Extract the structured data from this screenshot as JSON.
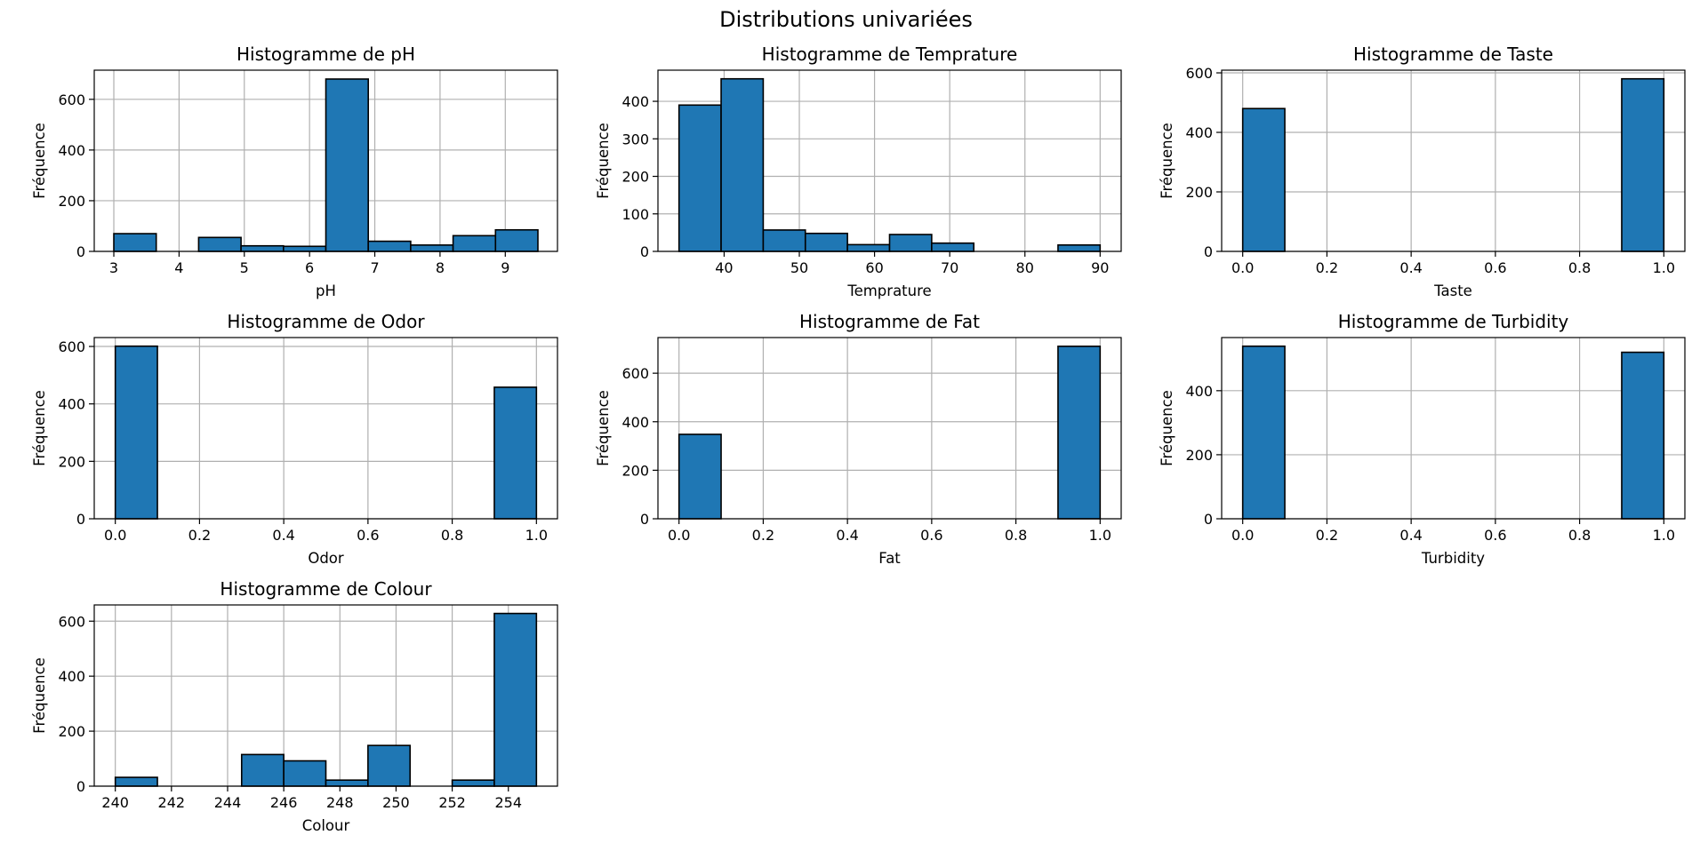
{
  "figure": {
    "title": "Distributions univariées"
  },
  "chart_data": [
    {
      "type": "bar",
      "title": "Histogramme de pH",
      "xlabel": "pH",
      "ylabel": "Fréquence",
      "bin_edges": [
        3.0,
        3.65,
        4.3,
        4.95,
        5.6,
        6.25,
        6.9,
        7.55,
        8.2,
        8.85,
        9.5
      ],
      "values": [
        70,
        0,
        55,
        22,
        20,
        680,
        40,
        25,
        62,
        85
      ],
      "xlim": [
        2.7,
        9.8
      ],
      "ylim": [
        0,
        715
      ],
      "xticks": [
        3,
        4,
        5,
        6,
        7,
        8,
        9
      ],
      "xtick_labels": [
        "3",
        "4",
        "5",
        "6",
        "7",
        "8",
        "9"
      ],
      "yticks": [
        0,
        200,
        400,
        600
      ],
      "ytick_labels": [
        "0",
        "200",
        "400",
        "600"
      ],
      "grid": true
    },
    {
      "type": "bar",
      "title": "Histogramme de Temprature",
      "xlabel": "Temprature",
      "ylabel": "Fréquence",
      "bin_edges": [
        34,
        39.6,
        45.2,
        50.8,
        56.4,
        62.0,
        67.6,
        73.2,
        78.8,
        84.4,
        90
      ],
      "values": [
        390,
        460,
        57,
        48,
        18,
        45,
        22,
        0,
        0,
        17
      ],
      "xlim": [
        31.2,
        92.8
      ],
      "ylim": [
        0,
        483
      ],
      "xticks": [
        40,
        50,
        60,
        70,
        80,
        90
      ],
      "xtick_labels": [
        "40",
        "50",
        "60",
        "70",
        "80",
        "90"
      ],
      "yticks": [
        0,
        100,
        200,
        300,
        400
      ],
      "ytick_labels": [
        "0",
        "100",
        "200",
        "300",
        "400"
      ],
      "grid": true
    },
    {
      "type": "bar",
      "title": "Histogramme de Taste",
      "xlabel": "Taste",
      "ylabel": "Fréquence",
      "bin_edges": [
        0.0,
        0.1,
        0.2,
        0.3,
        0.4,
        0.5,
        0.6,
        0.7,
        0.8,
        0.9,
        1.0
      ],
      "values": [
        480,
        0,
        0,
        0,
        0,
        0,
        0,
        0,
        0,
        580
      ],
      "xlim": [
        -0.05,
        1.05
      ],
      "ylim": [
        0,
        609
      ],
      "xticks": [
        0.0,
        0.2,
        0.4,
        0.6,
        0.8,
        1.0
      ],
      "xtick_labels": [
        "0.0",
        "0.2",
        "0.4",
        "0.6",
        "0.8",
        "1.0"
      ],
      "yticks": [
        0,
        200,
        400,
        600
      ],
      "ytick_labels": [
        "0",
        "200",
        "400",
        "600"
      ],
      "grid": true
    },
    {
      "type": "bar",
      "title": "Histogramme de Odor",
      "xlabel": "Odor",
      "ylabel": "Fréquence",
      "bin_edges": [
        0.0,
        0.1,
        0.2,
        0.3,
        0.4,
        0.5,
        0.6,
        0.7,
        0.8,
        0.9,
        1.0
      ],
      "values": [
        601,
        0,
        0,
        0,
        0,
        0,
        0,
        0,
        0,
        458
      ],
      "xlim": [
        -0.05,
        1.05
      ],
      "ylim": [
        0,
        631
      ],
      "xticks": [
        0.0,
        0.2,
        0.4,
        0.6,
        0.8,
        1.0
      ],
      "xtick_labels": [
        "0.0",
        "0.2",
        "0.4",
        "0.6",
        "0.8",
        "1.0"
      ],
      "yticks": [
        0,
        200,
        400,
        600
      ],
      "ytick_labels": [
        "0",
        "200",
        "400",
        "600"
      ],
      "grid": true
    },
    {
      "type": "bar",
      "title": "Histogramme de Fat",
      "xlabel": "Fat",
      "ylabel": "Fréquence",
      "bin_edges": [
        0.0,
        0.1,
        0.2,
        0.3,
        0.4,
        0.5,
        0.6,
        0.7,
        0.8,
        0.9,
        1.0
      ],
      "values": [
        348,
        0,
        0,
        0,
        0,
        0,
        0,
        0,
        0,
        711
      ],
      "xlim": [
        -0.05,
        1.05
      ],
      "ylim": [
        0,
        747
      ],
      "xticks": [
        0.0,
        0.2,
        0.4,
        0.6,
        0.8,
        1.0
      ],
      "xtick_labels": [
        "0.0",
        "0.2",
        "0.4",
        "0.6",
        "0.8",
        "1.0"
      ],
      "yticks": [
        0,
        200,
        400,
        600
      ],
      "ytick_labels": [
        "0",
        "200",
        "400",
        "600"
      ],
      "grid": true
    },
    {
      "type": "bar",
      "title": "Histogramme de Turbidity",
      "xlabel": "Turbidity",
      "ylabel": "Fréquence",
      "bin_edges": [
        0.0,
        0.1,
        0.2,
        0.3,
        0.4,
        0.5,
        0.6,
        0.7,
        0.8,
        0.9,
        1.0
      ],
      "values": [
        539,
        0,
        0,
        0,
        0,
        0,
        0,
        0,
        0,
        520
      ],
      "xlim": [
        -0.05,
        1.05
      ],
      "ylim": [
        0,
        566
      ],
      "xticks": [
        0.0,
        0.2,
        0.4,
        0.6,
        0.8,
        1.0
      ],
      "xtick_labels": [
        "0.0",
        "0.2",
        "0.4",
        "0.6",
        "0.8",
        "1.0"
      ],
      "yticks": [
        0,
        200,
        400
      ],
      "ytick_labels": [
        "0",
        "200",
        "400"
      ],
      "grid": true
    },
    {
      "type": "bar",
      "title": "Histogramme de Colour",
      "xlabel": "Colour",
      "ylabel": "Fréquence",
      "bin_edges": [
        240.0,
        241.5,
        243.0,
        244.5,
        246.0,
        247.5,
        249.0,
        250.5,
        252.0,
        253.5,
        255.0
      ],
      "values": [
        32,
        0,
        0,
        115,
        92,
        22,
        148,
        0,
        22,
        628
      ],
      "xlim": [
        239.25,
        255.75
      ],
      "ylim": [
        0,
        659
      ],
      "xticks": [
        240,
        242,
        244,
        246,
        248,
        250,
        252,
        254
      ],
      "xtick_labels": [
        "240",
        "242",
        "244",
        "246",
        "248",
        "250",
        "252",
        "254"
      ],
      "yticks": [
        0,
        200,
        400,
        600
      ],
      "ytick_labels": [
        "0",
        "200",
        "400",
        "600"
      ],
      "grid": true
    }
  ]
}
